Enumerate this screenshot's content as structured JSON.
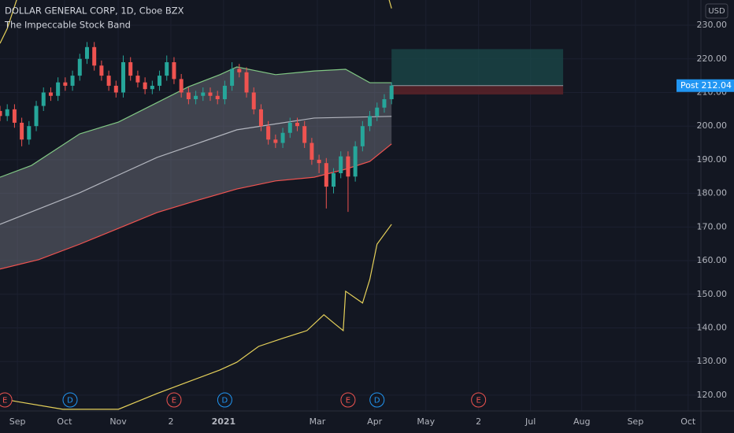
{
  "chart_data": {
    "type": "candlestick",
    "title": "DOLLAR GENERAL CORP, 1D, Cboe BZX",
    "subtitle": "The Impeccable Stock Band",
    "currency": "USD",
    "ylim": [
      115.3,
      237.5
    ],
    "yticks": [
      {
        "value": 120,
        "label": "120.00"
      },
      {
        "value": 130,
        "label": "130.00"
      },
      {
        "value": 140,
        "label": "140.00"
      },
      {
        "value": 150,
        "label": "150.00"
      },
      {
        "value": 160,
        "label": "160.00"
      },
      {
        "value": 170,
        "label": "170.00"
      },
      {
        "value": 180,
        "label": "180.00"
      },
      {
        "value": 190,
        "label": "190.00"
      },
      {
        "value": 200,
        "label": "200.00"
      },
      {
        "value": 210,
        "label": "210.00"
      },
      {
        "value": 220,
        "label": "220.00"
      },
      {
        "value": 230,
        "label": "230.00"
      }
    ],
    "xlim": [
      0,
      290
    ],
    "xticks": [
      {
        "value": 7.2,
        "label": "Sep"
      },
      {
        "value": 26.7,
        "label": "Oct"
      },
      {
        "value": 48.9,
        "label": "Nov"
      },
      {
        "value": 70.7,
        "label": "2"
      },
      {
        "value": 92.5,
        "label": "2021"
      },
      {
        "value": 131.3,
        "label": "Mar"
      },
      {
        "value": 155,
        "label": "Apr"
      },
      {
        "value": 176.2,
        "label": "May"
      },
      {
        "value": 198,
        "label": "2"
      },
      {
        "value": 219.5,
        "label": "Jul"
      },
      {
        "value": 240.7,
        "label": "Aug"
      },
      {
        "value": 262.9,
        "label": "Sep"
      },
      {
        "value": 284.7,
        "label": "Oct"
      }
    ],
    "grid": true,
    "up_color": "#26a69a",
    "down_color": "#ef5350",
    "candles": {
      "x": [
        0,
        3,
        6,
        9,
        12,
        15,
        18,
        21,
        24,
        27,
        30,
        33,
        36,
        39,
        42,
        45,
        48,
        51,
        54,
        57,
        60,
        63,
        66,
        69,
        72,
        75,
        78,
        81,
        84,
        87,
        90,
        93,
        96,
        99,
        102,
        105,
        108,
        111,
        114,
        117,
        120,
        123,
        126,
        129,
        132,
        135,
        138,
        141,
        144,
        147,
        150,
        153,
        156,
        159,
        162
      ],
      "open": [
        204.5,
        203,
        205,
        201,
        196,
        200,
        206,
        210,
        209,
        213,
        212,
        215,
        220,
        223.5,
        218,
        215,
        212,
        210,
        219,
        215,
        213,
        211,
        212,
        215,
        219,
        214,
        210,
        208,
        209,
        210,
        209,
        208,
        212,
        217,
        216,
        210,
        205,
        200,
        196,
        195,
        198,
        201,
        200,
        195,
        190,
        189,
        182,
        186,
        191,
        185,
        194,
        200,
        203,
        205.5,
        208
      ],
      "high": [
        206,
        206.5,
        206.5,
        202.5,
        201.5,
        207.5,
        211.5,
        211.5,
        214.5,
        214.5,
        216.5,
        221.5,
        225,
        225,
        219.5,
        216.5,
        213.5,
        221,
        220.5,
        216.5,
        214.5,
        213.5,
        216.5,
        221,
        220.5,
        215.5,
        211.5,
        210.5,
        211.5,
        211.5,
        210.5,
        213.5,
        219,
        218.5,
        217.5,
        211.5,
        206.5,
        201.5,
        197.5,
        199.5,
        202.5,
        202.5,
        201.5,
        196.5,
        191.5,
        190.5,
        187.5,
        192.5,
        192.5,
        195.5,
        201.5,
        204.5,
        207,
        209.5,
        213
      ],
      "low": [
        201.5,
        201.5,
        199.5,
        194,
        194.5,
        198.5,
        204.5,
        207.5,
        207.5,
        210.5,
        210.5,
        213.5,
        218.5,
        216.5,
        213.5,
        210.5,
        208.5,
        208.5,
        213.5,
        211.5,
        209.5,
        209.5,
        210.5,
        213.5,
        212.5,
        208.5,
        206.5,
        206.5,
        207.5,
        207.5,
        206.5,
        206.5,
        210.5,
        214.5,
        208.5,
        203.5,
        198.5,
        194.5,
        193.5,
        193.5,
        196.5,
        198.5,
        193.5,
        188.5,
        186,
        175.5,
        180,
        184.5,
        174.5,
        183.5,
        192.5,
        198.5,
        201.5,
        204,
        206.5
      ],
      "close": [
        203,
        205,
        201,
        196,
        200,
        206,
        210,
        209,
        213,
        212,
        215,
        220,
        223.5,
        218,
        215,
        212,
        210,
        219,
        215,
        213,
        211,
        212,
        215,
        219,
        214,
        210,
        208,
        209,
        210,
        209,
        208,
        212,
        217,
        216,
        210,
        205,
        200,
        196,
        195,
        198,
        201,
        200,
        195,
        190,
        189,
        182,
        186,
        191,
        185,
        194,
        200,
        203,
        205.5,
        208,
        212.04
      ]
    },
    "bands": [
      {
        "color": "#81c784",
        "x": [
          0,
          13,
          33,
          49,
          65,
          78,
          91,
          98,
          114,
          130,
          143,
          153,
          162
        ],
        "values": [
          184.8,
          188.3,
          197.7,
          201.2,
          207,
          211.7,
          215.3,
          217.6,
          215.3,
          216.4,
          216.9,
          212.9,
          212.9
        ]
      },
      {
        "color": "#b2b5be",
        "x": [
          0,
          33,
          65,
          98,
          130,
          162
        ],
        "values": [
          170.8,
          180.2,
          190.7,
          198.9,
          202.4,
          202.9
        ]
      },
      {
        "color": "#f05350",
        "x": [
          0,
          16,
          33,
          49,
          65,
          81,
          98,
          114,
          130,
          143,
          153,
          162
        ],
        "values": [
          157.5,
          160.3,
          164.9,
          169.6,
          174.3,
          177.8,
          181.3,
          183.7,
          184.8,
          187.2,
          189.5,
          194.7
        ]
      },
      {
        "color": "#e6d15a",
        "x": [
          0,
          3,
          8,
          158,
          160,
          162
        ],
        "values": [
          224.6,
          229,
          240,
          null,
          240,
          235
        ]
      },
      {
        "color": "#e6d15a",
        "x": [
          0,
          7,
          26,
          49,
          65,
          78,
          91,
          98,
          107,
          117,
          127,
          134,
          138,
          142,
          143,
          150,
          153,
          156,
          162
        ],
        "values": [
          119,
          118.1,
          115.8,
          115.8,
          120.5,
          124,
          127.5,
          129.8,
          134.5,
          136.9,
          139.2,
          143.9,
          141.5,
          139.2,
          150.9,
          147.4,
          154.4,
          164.9,
          170.8
        ]
      }
    ],
    "position": {
      "x_start": 162,
      "x_end": 233,
      "entry": 212.04,
      "target": 222.9,
      "stop": 209.4
    },
    "price_tag": {
      "label": "Post",
      "value": 212.04
    },
    "events": [
      {
        "x": 2,
        "label": "E",
        "color": "#ef5350"
      },
      {
        "x": 29,
        "label": "D",
        "color": "#2196f3"
      },
      {
        "x": 72,
        "label": "E",
        "color": "#ef5350"
      },
      {
        "x": 93,
        "label": "D",
        "color": "#2196f3"
      },
      {
        "x": 144,
        "label": "E",
        "color": "#ef5350"
      },
      {
        "x": 156,
        "label": "D",
        "color": "#2196f3"
      },
      {
        "x": 198,
        "label": "E",
        "color": "#ef5350"
      }
    ]
  }
}
